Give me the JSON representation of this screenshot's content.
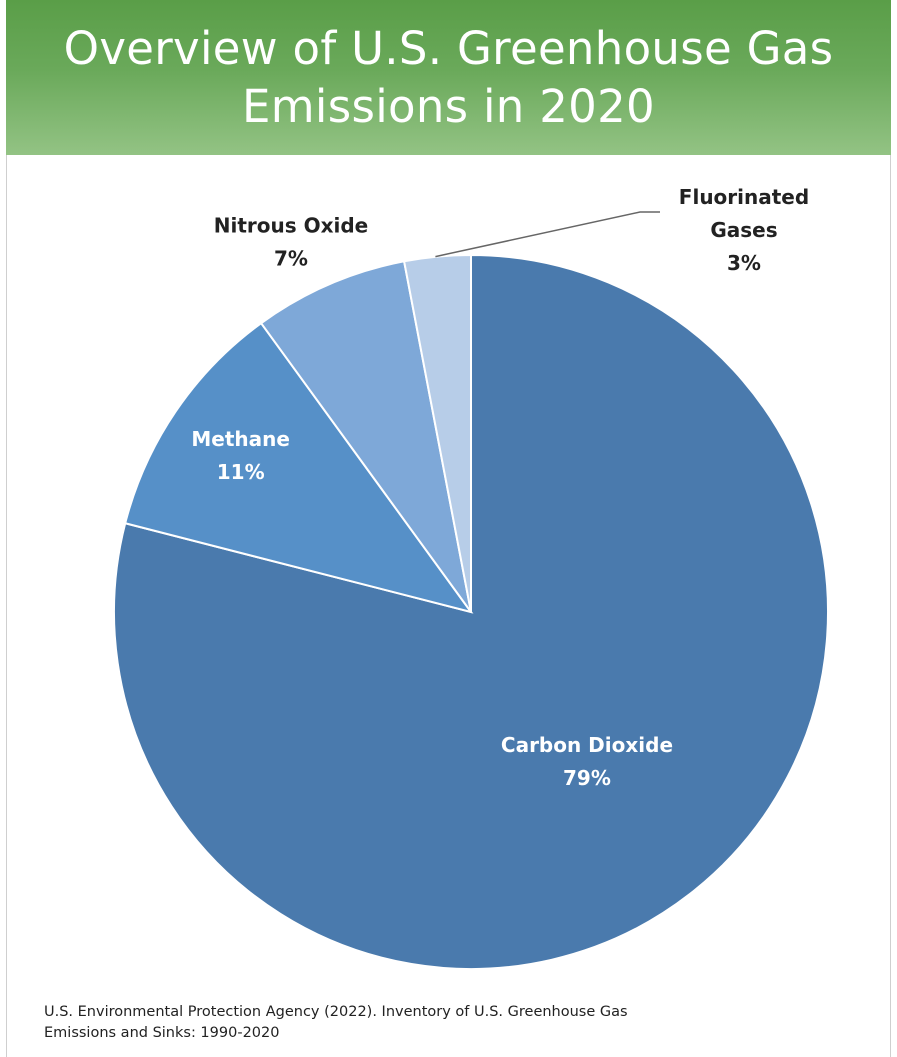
{
  "chart_data": {
    "type": "pie",
    "title": "Overview of U.S. Greenhouse Gas Emissions in 2020",
    "slices": [
      {
        "label": "Carbon Dioxide",
        "value": 79,
        "value_label": "79%",
        "color": "#4a7aad"
      },
      {
        "label": "Methane",
        "value": 11,
        "value_label": "11%",
        "color": "#5690c8"
      },
      {
        "label": "Nitrous Oxide",
        "value": 7,
        "value_label": "7%",
        "color": "#7ea8d8"
      },
      {
        "label": "Fluorinated Gases",
        "value": 3,
        "value_label": "3%",
        "color": "#b7cde8"
      }
    ],
    "legend": "none",
    "source": "U.S. Environmental Protection Agency (2022). Inventory of U.S. Greenhouse Gas Emissions and Sinks: 1990-2020"
  },
  "colors": {
    "banner": "#6aa95a",
    "title_text": "#ffffff",
    "label_inside": "#ffffff",
    "label_outside": "#222222"
  }
}
